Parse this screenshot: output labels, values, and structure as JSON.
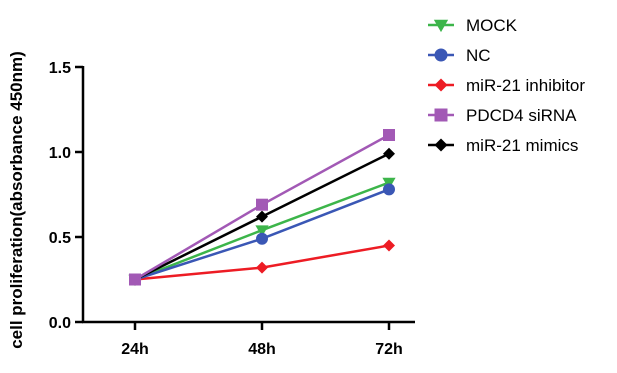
{
  "chart_data": {
    "type": "line",
    "title": "",
    "ylabel": "cell proliferation(absorbance 450nm)",
    "xlabel": "",
    "categories": [
      "24h",
      "48h",
      "72h"
    ],
    "ylim": [
      0,
      1.5
    ],
    "yticks": [
      0.0,
      0.5,
      1.0,
      1.5
    ],
    "ytick_labels": [
      "0.0",
      "0.5",
      "1.0",
      "1.5"
    ],
    "grid": false,
    "legend_position": "top-right",
    "series": [
      {
        "name": "MOCK",
        "values": [
          0.25,
          0.54,
          0.82
        ],
        "color": "#3cb54a",
        "marker": "triangle-down"
      },
      {
        "name": "NC",
        "values": [
          0.25,
          0.49,
          0.78
        ],
        "color": "#3a57b5",
        "marker": "circle"
      },
      {
        "name": "miR-21 inhibitor",
        "values": [
          0.25,
          0.32,
          0.45
        ],
        "color": "#ed1c24",
        "marker": "diamond"
      },
      {
        "name": "PDCD4 siRNA",
        "values": [
          0.25,
          0.69,
          1.1
        ],
        "color": "#a259b5",
        "marker": "square"
      },
      {
        "name": "miR-21 mimics",
        "values": [
          0.25,
          0.62,
          0.99
        ],
        "color": "#000000",
        "marker": "diamond"
      }
    ]
  }
}
